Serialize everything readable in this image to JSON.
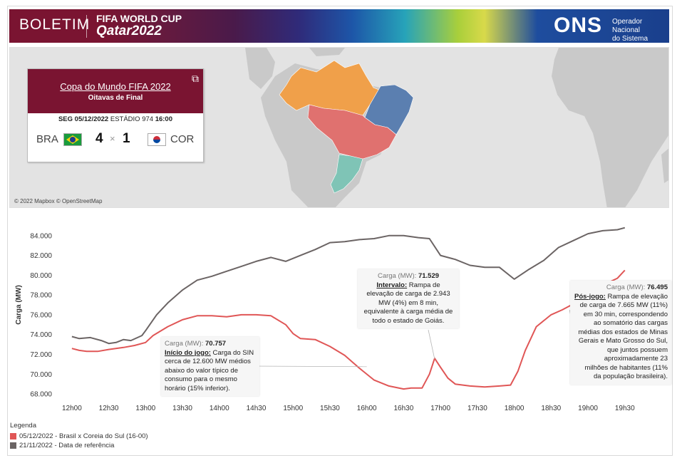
{
  "banner": {
    "boletim": "BOLETIM",
    "cup_line1": "FIFA WORLD CUP",
    "cup_line2": "Qatar2022",
    "ons_logo": "ONS",
    "ons_desc_line1": "Operador Nacional",
    "ons_desc_line2": "do Sistema Elétrico",
    "colors": {
      "maroon": "#7a1431",
      "blue": "#1a3f8c"
    }
  },
  "map": {
    "credit": "© 2022 Mapbox © OpenStreetMap",
    "region_colors": {
      "north": "#f0a04a",
      "northeast": "#5b7fb0",
      "southeast_centerwest": "#e0716f",
      "south": "#7fc4b6",
      "land": "#c9c9c9",
      "sea": "#e3e3e3"
    }
  },
  "match": {
    "title": "Copa do Mundo FIFA 2022",
    "stage": "Oitavas de Final",
    "date_prefix": "SEG 05/12/2022",
    "venue": "ESTÁDIO 974",
    "time": "16:00",
    "team1": "BRA",
    "team1_goals": "4",
    "separator": "×",
    "team2_goals": "1",
    "team2": "COR",
    "share_icon": "share-icon"
  },
  "chart_data": {
    "type": "line",
    "ylabel": "Carga (MW)",
    "xlabel": "",
    "ylim": [
      67500,
      85500
    ],
    "yticks": [
      68000,
      70000,
      72000,
      74000,
      76000,
      78000,
      80000,
      82000,
      84000
    ],
    "ytick_labels": [
      "68.000",
      "70.000",
      "72.000",
      "74.000",
      "76.000",
      "78.000",
      "80.000",
      "82.000",
      "84.000"
    ],
    "xlim": [
      11.75,
      19.85
    ],
    "xticks": [
      12,
      12.5,
      13,
      13.5,
      14,
      14.5,
      15,
      15.5,
      16,
      16.5,
      17,
      17.5,
      18,
      18.5,
      19,
      19.5
    ],
    "xtick_labels": [
      "12h00",
      "12h30",
      "13h00",
      "13h30",
      "14h00",
      "14h30",
      "15h00",
      "15h30",
      "16h00",
      "16h30",
      "17h00",
      "17h30",
      "18h00",
      "18h30",
      "19h00",
      "19h30"
    ],
    "series": [
      {
        "name": "05/12/2022 - Brasil x Coreia do Sul (16-00)",
        "color": "#e05656",
        "x": [
          12.0,
          12.1,
          12.2,
          12.35,
          12.5,
          12.7,
          12.85,
          13.0,
          13.1,
          13.3,
          13.5,
          13.7,
          13.9,
          14.1,
          14.3,
          14.5,
          14.7,
          14.9,
          15.0,
          15.1,
          15.3,
          15.5,
          15.7,
          15.9,
          16.1,
          16.3,
          16.5,
          16.6,
          16.75,
          16.85,
          16.92,
          17.0,
          17.1,
          17.2,
          17.4,
          17.6,
          17.8,
          17.95,
          18.05,
          18.15,
          18.3,
          18.5,
          18.65,
          18.8,
          19.0,
          19.2,
          19.4,
          19.5
        ],
        "y": [
          72600,
          72400,
          72300,
          72300,
          72500,
          72700,
          72900,
          73200,
          73900,
          74800,
          75500,
          75900,
          75900,
          75800,
          76000,
          76000,
          75900,
          75000,
          74100,
          73600,
          73500,
          72800,
          71900,
          70600,
          69400,
          68800,
          68500,
          68600,
          68600,
          70000,
          71600,
          70700,
          69600,
          69000,
          68800,
          68700,
          68800,
          68900,
          70300,
          72400,
          74800,
          76000,
          76500,
          77100,
          78000,
          79000,
          79700,
          80500
        ]
      },
      {
        "name": "21/11/2022 - Data de referência",
        "color": "#6b6464",
        "x": [
          12.0,
          12.1,
          12.25,
          12.4,
          12.5,
          12.6,
          12.7,
          12.8,
          12.95,
          13.0,
          13.15,
          13.3,
          13.5,
          13.7,
          13.9,
          14.1,
          14.3,
          14.5,
          14.7,
          14.9,
          15.1,
          15.3,
          15.5,
          15.7,
          15.9,
          16.1,
          16.3,
          16.5,
          16.7,
          16.85,
          17.0,
          17.2,
          17.4,
          17.6,
          17.8,
          18.0,
          18.2,
          18.4,
          18.6,
          18.8,
          19.0,
          19.2,
          19.4,
          19.5
        ],
        "y": [
          73800,
          73600,
          73700,
          73400,
          73100,
          73200,
          73500,
          73400,
          73900,
          74400,
          76000,
          77200,
          78500,
          79500,
          79900,
          80400,
          80900,
          81400,
          81800,
          81400,
          82000,
          82600,
          83300,
          83400,
          83600,
          83700,
          84000,
          84000,
          83800,
          83700,
          82000,
          81600,
          81000,
          80800,
          80800,
          79600,
          80600,
          81500,
          82800,
          83500,
          84200,
          84500,
          84600,
          84800
        ]
      }
    ],
    "legend": {
      "title": "Legenda",
      "placement": "bottom-left"
    },
    "grid": false
  },
  "annotations": {
    "a1": {
      "label": "Carga (MW):",
      "value": "70.757",
      "head": "Início do jogo:",
      "lines": [
        "Carga do SIN",
        "cerca de 12.600 MW médios",
        "abaixo do valor típico de",
        "consumo para o mesmo",
        "horário (15% inferior)."
      ]
    },
    "a2": {
      "label": "Carga (MW):",
      "value": "71.529",
      "head": "Intervalo:",
      "lines": [
        "Rampa de",
        "elevação de carga de 2.943",
        "MW (4%) em 8 min,",
        "equivalente à carga média de",
        "todo o estado de Goiás."
      ]
    },
    "a3": {
      "label": "Carga (MW):",
      "value": "76.495",
      "head": "Pós-jogo:",
      "lines": [
        "Rampa de elevação",
        "de carga de 7.665 MW (11%)",
        "em 30 min, correspondendo",
        "ao somatório das cargas",
        "médias dos estados de Minas",
        "Gerais e Mato Grosso do Sul,",
        "que juntos possuem",
        "aproximadamente 23",
        "milhões de habitantes (11%",
        "da população brasileira)."
      ]
    }
  }
}
